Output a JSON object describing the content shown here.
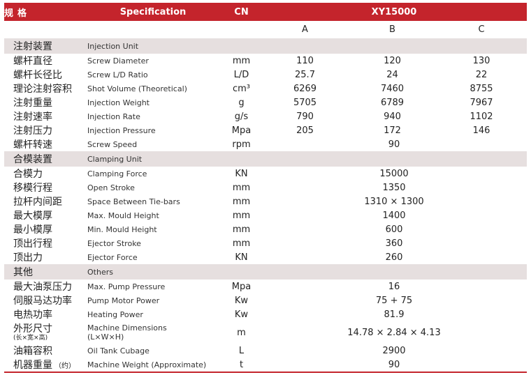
{
  "header": {
    "spec_cn": "规格",
    "spec_en": "Specification",
    "unit": "CN",
    "model": "XY15000"
  },
  "variants": [
    "A",
    "B",
    "C"
  ],
  "sections": [
    {
      "cn": "注射装置",
      "en": "Injection Unit",
      "rows": [
        {
          "cn": "螺杆直径",
          "en": "Screw Diameter",
          "unit": "mm",
          "values": [
            "110",
            "120",
            "130"
          ]
        },
        {
          "cn": "螺杆长径比",
          "en": "Screw L/D Ratio",
          "unit": "L/D",
          "values": [
            "25.7",
            "24",
            "22"
          ]
        },
        {
          "cn": "理论注射容积",
          "en": "Shot Volume (Theoretical)",
          "unit": "cm³",
          "values": [
            "6269",
            "7460",
            "8755"
          ]
        },
        {
          "cn": "注射重量",
          "en": "Injection Weight",
          "unit": "g",
          "values": [
            "5705",
            "6789",
            "7967"
          ]
        },
        {
          "cn": "注射速率",
          "en": "Injection Rate",
          "unit": "g/s",
          "values": [
            "790",
            "940",
            "1102"
          ]
        },
        {
          "cn": "注射压力",
          "en": "Injection Pressure",
          "unit": "Mpa",
          "values": [
            "205",
            "172",
            "146"
          ]
        },
        {
          "cn": "螺杆转速",
          "en": "Screw Speed",
          "unit": "rpm",
          "value": "90"
        }
      ]
    },
    {
      "cn": "合模装置",
      "en": "Clamping Unit",
      "rows": [
        {
          "cn": "合模力",
          "en": "Clamping Force",
          "unit": "KN",
          "value": "15000"
        },
        {
          "cn": "移模行程",
          "en": "Open Stroke",
          "unit": "mm",
          "value": "1350"
        },
        {
          "cn": "拉杆内间距",
          "en": "Space Between Tie-bars",
          "unit": "mm",
          "value": "1310 × 1300"
        },
        {
          "cn": "最大模厚",
          "en": "Max. Mould Height",
          "unit": "mm",
          "value": "1400"
        },
        {
          "cn": "最小模厚",
          "en": "Min. Mould Height",
          "unit": "mm",
          "value": "600"
        },
        {
          "cn": "顶出行程",
          "en": "Ejector Stroke",
          "unit": "mm",
          "value": "360"
        },
        {
          "cn": "顶出力",
          "en": "Ejector Force",
          "unit": "KN",
          "value": "260"
        }
      ]
    },
    {
      "cn": "其他",
      "en": "Others",
      "rows": [
        {
          "cn": "最大油泵压力",
          "en": "Max. Pump Pressure",
          "unit": "Mpa",
          "value": "16"
        },
        {
          "cn": "伺服马达功率",
          "en": "Pump Motor Power",
          "unit": "Kw",
          "value": "75 + 75"
        },
        {
          "cn": "电热功率",
          "en": "Heating Power",
          "unit": "Kw",
          "value": "81.9"
        },
        {
          "cn": "外形尺寸",
          "cn_note": "(长×宽×高)",
          "en": "Machine Dimensions",
          "en_note": "(L×W×H)",
          "unit": "m",
          "value": "14.78 × 2.84 × 4.13"
        },
        {
          "cn": "油箱容积",
          "en": "Oil Tank Cubage",
          "unit": "L",
          "value": "2900"
        },
        {
          "cn": "机器重量",
          "cn_note": "（约）",
          "en": "Machine Weight (Approximate)",
          "unit": "t",
          "value": "90"
        }
      ]
    }
  ]
}
